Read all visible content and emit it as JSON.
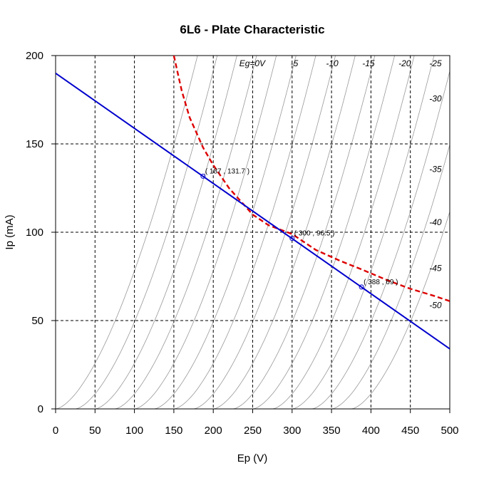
{
  "chart_data": {
    "type": "line",
    "title": "6L6 - Plate Characteristic",
    "xlabel": "Ep (V)",
    "ylabel": "Ip (mA)",
    "xlim": [
      0,
      500
    ],
    "ylim": [
      0,
      200
    ],
    "x_ticks": [
      "0",
      "50",
      "100",
      "150",
      "200",
      "250",
      "300",
      "350",
      "400",
      "450",
      "500"
    ],
    "y_ticks": [
      "0",
      "50",
      "100",
      "150",
      "200"
    ],
    "grid": "dashed",
    "grid_x": [
      50,
      100,
      150,
      200,
      250,
      300,
      350,
      400,
      450,
      500
    ],
    "grid_y": [
      50,
      100,
      150
    ],
    "colors": {
      "curves": "#999999",
      "load_line": "#0000cc",
      "power_curve": "#dd0000",
      "grid": "#000000"
    },
    "grid_curves": [
      {
        "eg": "Eg=0V",
        "ep0": 0
      },
      {
        "eg": "-5",
        "ep0": 25
      },
      {
        "eg": "-10",
        "ep0": 50
      },
      {
        "eg": "-15",
        "ep0": 75
      },
      {
        "eg": "-20",
        "ep0": 100
      },
      {
        "eg": "-25",
        "ep0": 125
      },
      {
        "eg": "-30",
        "ep0": 150
      },
      {
        "eg": "-35",
        "ep0": 175
      },
      {
        "eg": "-40",
        "ep0": 200
      },
      {
        "eg": "-45",
        "ep0": 225
      },
      {
        "eg": "-50",
        "ep0": 250
      },
      {
        "eg": "",
        "ep0": 275
      },
      {
        "eg": "",
        "ep0": 300
      },
      {
        "eg": "",
        "ep0": 325
      },
      {
        "eg": "",
        "ep0": 350
      },
      {
        "eg": "",
        "ep0": 375
      }
    ],
    "curve_labels": [
      {
        "text": "Eg=0V",
        "x": 233,
        "y": 194
      },
      {
        "text": "-5",
        "x": 298,
        "y": 194
      },
      {
        "text": "-10",
        "x": 343,
        "y": 194
      },
      {
        "text": "-15",
        "x": 389,
        "y": 194
      },
      {
        "text": "-20",
        "x": 435,
        "y": 194
      },
      {
        "text": "-25",
        "x": 474,
        "y": 194
      },
      {
        "text": "-30",
        "x": 474,
        "y": 174
      },
      {
        "text": "-35",
        "x": 474,
        "y": 134
      },
      {
        "text": "-40",
        "x": 474,
        "y": 104
      },
      {
        "text": "-45",
        "x": 474,
        "y": 78
      },
      {
        "text": "-50",
        "x": 474,
        "y": 57
      }
    ],
    "load_line": {
      "x": [
        0,
        500
      ],
      "y": [
        190,
        34
      ]
    },
    "power_curve": {
      "x": [
        150,
        155,
        160,
        170,
        180,
        187,
        200,
        220,
        250,
        270,
        300,
        330,
        360,
        388,
        420,
        450,
        480,
        500
      ],
      "y": [
        200,
        190,
        180,
        165,
        155,
        148,
        138,
        125,
        110,
        104,
        99,
        90,
        84,
        79,
        73,
        68,
        64,
        61
      ]
    },
    "points": [
      {
        "x": 187,
        "y": 131.7,
        "label": "( 187 , 131.7 )"
      },
      {
        "x": 300,
        "y": 96.5,
        "label": "( 300 , 96.5 )"
      },
      {
        "x": 388,
        "y": 69,
        "label": "( 388 , 69 )"
      }
    ]
  }
}
